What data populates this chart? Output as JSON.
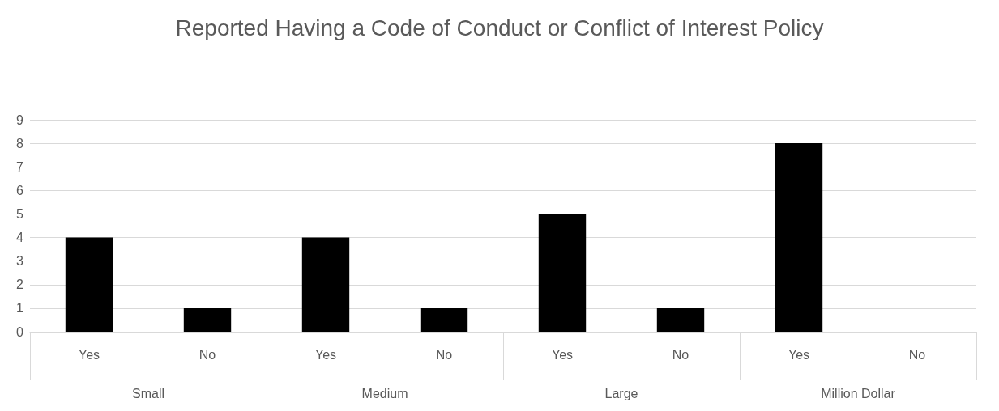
{
  "chart_data": {
    "type": "bar",
    "title": "Reported Having a Code of Conduct or Conflict of Interest Policy",
    "categories": [
      "Yes",
      "No",
      "Yes",
      "No",
      "Yes",
      "No",
      "Yes",
      "No"
    ],
    "values": [
      4,
      1,
      4,
      1,
      5,
      1,
      8,
      0
    ],
    "colors": [
      "#000000",
      "#000000",
      "#000000",
      "#000000",
      "#000000",
      "#000000",
      "#000000",
      "#000000"
    ],
    "annotations": [
      "Small",
      "Medium",
      "Large",
      "Million Dollar"
    ],
    "ylim": [
      0,
      9
    ],
    "yticks": [
      0,
      1,
      2,
      3,
      4,
      5,
      6,
      7,
      8,
      9
    ],
    "grid": "y"
  }
}
